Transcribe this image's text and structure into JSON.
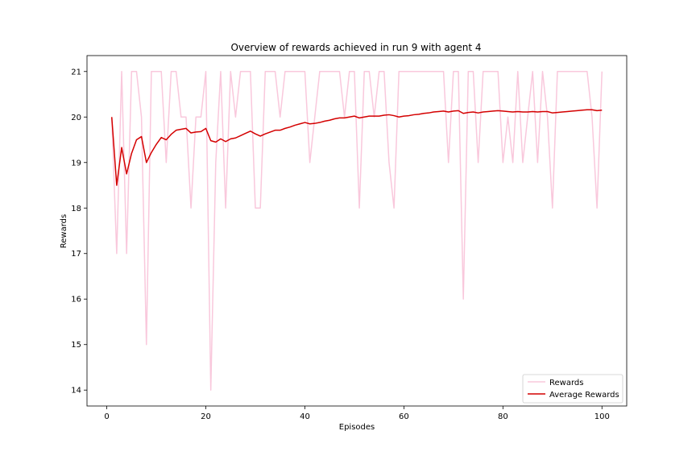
{
  "chart_data": {
    "type": "line",
    "title": "Overview of rewards achieved in run 9 with agent 4",
    "xlabel": "Episodes",
    "ylabel": "Rewards",
    "xlim": [
      -4,
      105
    ],
    "ylim": [
      13.65,
      21.35
    ],
    "xticks": [
      0,
      20,
      40,
      60,
      80,
      100
    ],
    "yticks": [
      14,
      15,
      16,
      17,
      18,
      19,
      20,
      21
    ],
    "grid": false,
    "legend": "lower-right",
    "x": [
      1,
      2,
      3,
      4,
      5,
      6,
      7,
      8,
      9,
      10,
      11,
      12,
      13,
      14,
      15,
      16,
      17,
      18,
      19,
      20,
      21,
      22,
      23,
      24,
      25,
      26,
      27,
      28,
      29,
      30,
      31,
      32,
      33,
      34,
      35,
      36,
      37,
      38,
      39,
      40,
      41,
      42,
      43,
      44,
      45,
      46,
      47,
      48,
      49,
      50,
      51,
      52,
      53,
      54,
      55,
      56,
      57,
      58,
      59,
      60,
      61,
      62,
      63,
      64,
      65,
      66,
      67,
      68,
      69,
      70,
      71,
      72,
      73,
      74,
      75,
      76,
      77,
      78,
      79,
      80,
      81,
      82,
      83,
      84,
      85,
      86,
      87,
      88,
      89,
      90,
      91,
      92,
      93,
      94,
      95,
      96,
      97,
      98,
      99,
      100
    ],
    "series": [
      {
        "name": "Rewards",
        "color": "#f9c8dc",
        "values": [
          20,
          17,
          21,
          17,
          21,
          21,
          20,
          15,
          21,
          21,
          21,
          19,
          21,
          21,
          20,
          20,
          18,
          20,
          20,
          21,
          14,
          19,
          21,
          18,
          21,
          20,
          21,
          21,
          21,
          18,
          18,
          21,
          21,
          21,
          20,
          21,
          21,
          21,
          21,
          21,
          19,
          20,
          21,
          21,
          21,
          21,
          21,
          20,
          21,
          21,
          18,
          21,
          21,
          20,
          21,
          21,
          19,
          18,
          21,
          21,
          21,
          21,
          21,
          21,
          21,
          21,
          21,
          21,
          19,
          21,
          21,
          16,
          21,
          21,
          19,
          21,
          21,
          21,
          21,
          19,
          20,
          19,
          21,
          19,
          20,
          21,
          19,
          21,
          20,
          18,
          21,
          21,
          21,
          21,
          21,
          21,
          21,
          20,
          18,
          21
        ]
      },
      {
        "name": "Average Rewards",
        "color": "#d40000",
        "values": [
          20.0,
          18.5,
          19.33,
          18.75,
          19.2,
          19.5,
          19.57,
          19.0,
          19.22,
          19.4,
          19.55,
          19.5,
          19.62,
          19.71,
          19.73,
          19.75,
          19.65,
          19.67,
          19.68,
          19.75,
          19.48,
          19.45,
          19.52,
          19.46,
          19.52,
          19.54,
          19.59,
          19.64,
          19.69,
          19.63,
          19.58,
          19.63,
          19.67,
          19.71,
          19.71,
          19.75,
          19.78,
          19.82,
          19.85,
          19.88,
          19.85,
          19.86,
          19.88,
          19.91,
          19.93,
          19.96,
          19.98,
          19.98,
          20.0,
          20.02,
          19.98,
          20.0,
          20.02,
          20.02,
          20.02,
          20.04,
          20.05,
          20.03,
          20.0,
          20.02,
          20.03,
          20.05,
          20.06,
          20.08,
          20.09,
          20.11,
          20.12,
          20.13,
          20.11,
          20.13,
          20.14,
          20.08,
          20.1,
          20.11,
          20.09,
          20.11,
          20.12,
          20.13,
          20.14,
          20.13,
          20.12,
          20.11,
          20.12,
          20.11,
          20.11,
          20.12,
          20.11,
          20.12,
          20.12,
          20.09,
          20.1,
          20.11,
          20.12,
          20.13,
          20.14,
          20.15,
          20.16,
          20.16,
          20.14,
          20.15
        ]
      }
    ]
  }
}
